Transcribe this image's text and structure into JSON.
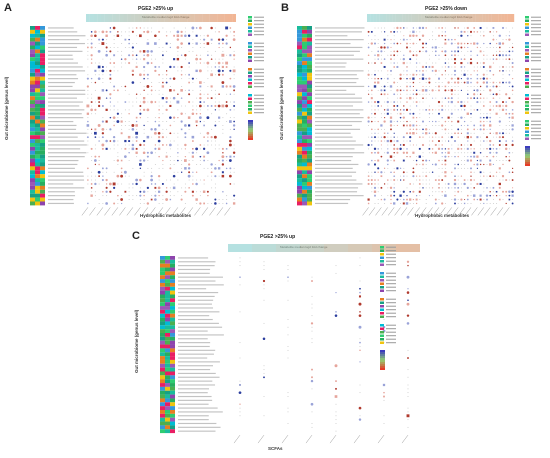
{
  "panels": [
    {
      "id": "A",
      "label": "A",
      "title": "PGE2 >25% up",
      "x_label": "Hydrophilic metabolites",
      "y_label": "Gut microbiome (genus level)",
      "fc_label": "Metabolite median log2 fold change"
    },
    {
      "id": "B",
      "label": "B",
      "title": "PGE2 >25% down",
      "x_label": "Hydrophobic metabolites",
      "y_label": "Gut microbiome (genus level)",
      "fc_label": "Metabolite median log2 fold change"
    },
    {
      "id": "C",
      "label": "C",
      "title": "PGE2 >25% up",
      "x_label": "SCFAs",
      "y_label": "Gut microbiome (genus level)",
      "fc_label": "Metabolite median log2 fold change"
    }
  ],
  "colors": {
    "positive": "#c0392b",
    "negative": "#3b3bb0",
    "neutral": "#cccccc"
  }
}
